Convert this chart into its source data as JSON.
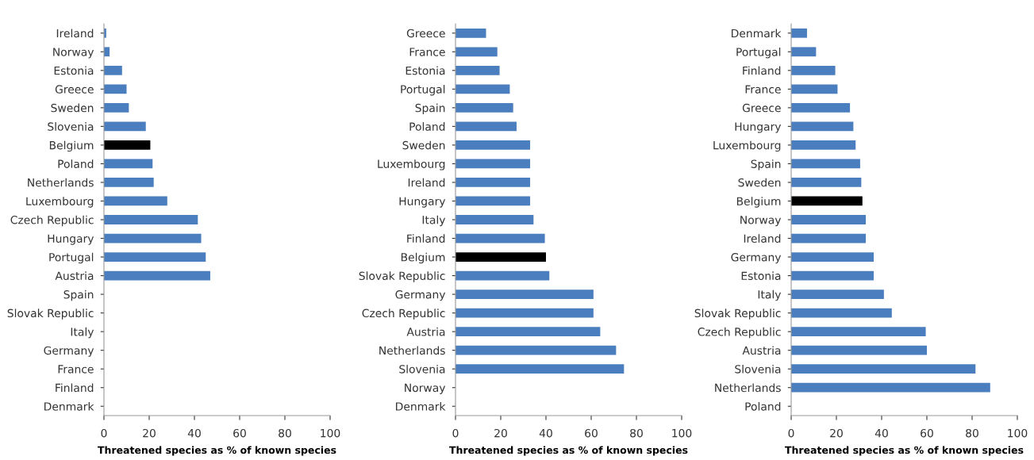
{
  "chart_data": [
    {
      "type": "bar",
      "orientation": "horizontal",
      "xlabel": "Threatened species as % of known species",
      "categories": [
        "Ireland",
        "Norway",
        "Estonia",
        "Greece",
        "Sweden",
        "Slovenia",
        "Belgium",
        "Poland",
        "Netherlands",
        "Luxembourg",
        "Czech Republic",
        "Hungary",
        "Portugal",
        "Austria",
        "Spain",
        "Slovak Republic",
        "Italy",
        "Germany",
        "France",
        "Finland",
        "Denmark"
      ],
      "values": [
        1,
        2.5,
        8,
        10,
        11,
        18.5,
        20.5,
        21.5,
        22,
        28,
        41.5,
        43,
        45,
        47,
        0,
        0,
        0,
        0,
        0,
        0,
        0
      ],
      "colors": [
        "#4a7ebf",
        "#4a7ebf",
        "#4a7ebf",
        "#4a7ebf",
        "#4a7ebf",
        "#4a7ebf",
        "#000000",
        "#4a7ebf",
        "#4a7ebf",
        "#4a7ebf",
        "#4a7ebf",
        "#4a7ebf",
        "#4a7ebf",
        "#4a7ebf",
        "#4a7ebf",
        "#4a7ebf",
        "#4a7ebf",
        "#4a7ebf",
        "#4a7ebf",
        "#4a7ebf",
        "#4a7ebf"
      ],
      "xlim": [
        0,
        100
      ],
      "xticks": [
        0,
        20,
        40,
        60,
        80,
        100
      ],
      "grid": false
    },
    {
      "type": "bar",
      "orientation": "horizontal",
      "xlabel": "Threatened species as % of known species",
      "categories": [
        "Greece",
        "France",
        "Estonia",
        "Portugal",
        "Spain",
        "Poland",
        "Sweden",
        "Luxembourg",
        "Ireland",
        "Hungary",
        "Italy",
        "Finland",
        "Belgium",
        "Slovak Republic",
        "Germany",
        "Czech Republic",
        "Austria",
        "Netherlands",
        "Slovenia",
        "Norway",
        "Denmark"
      ],
      "values": [
        13.5,
        18.5,
        19.5,
        24,
        25.5,
        27,
        33,
        33,
        33,
        33,
        34.5,
        39.5,
        40,
        41.5,
        61,
        61,
        64,
        71,
        74.5,
        0,
        0
      ],
      "colors": [
        "#4a7ebf",
        "#4a7ebf",
        "#4a7ebf",
        "#4a7ebf",
        "#4a7ebf",
        "#4a7ebf",
        "#4a7ebf",
        "#4a7ebf",
        "#4a7ebf",
        "#4a7ebf",
        "#4a7ebf",
        "#4a7ebf",
        "#000000",
        "#4a7ebf",
        "#4a7ebf",
        "#4a7ebf",
        "#4a7ebf",
        "#4a7ebf",
        "#4a7ebf",
        "#4a7ebf",
        "#4a7ebf"
      ],
      "xlim": [
        0,
        100
      ],
      "xticks": [
        0,
        20,
        40,
        60,
        80,
        100
      ],
      "grid": false
    },
    {
      "type": "bar",
      "orientation": "horizontal",
      "xlabel": "Threatened species as % of known species",
      "categories": [
        "Denmark",
        "Portugal",
        "Finland",
        "France",
        "Greece",
        "Hungary",
        "Luxembourg",
        "Spain",
        "Sweden",
        "Belgium",
        "Norway",
        "Ireland",
        "Germany",
        "Estonia",
        "Italy",
        "Slovak Republic",
        "Czech Republic",
        "Austria",
        "Slovenia",
        "Netherlands",
        "Poland"
      ],
      "values": [
        7,
        11,
        19.5,
        20.5,
        26,
        27.5,
        28.5,
        30.5,
        31,
        31.5,
        33,
        33,
        36.5,
        36.5,
        41,
        44.5,
        59.5,
        60,
        81.5,
        88,
        0
      ],
      "colors": [
        "#4a7ebf",
        "#4a7ebf",
        "#4a7ebf",
        "#4a7ebf",
        "#4a7ebf",
        "#4a7ebf",
        "#4a7ebf",
        "#4a7ebf",
        "#4a7ebf",
        "#000000",
        "#4a7ebf",
        "#4a7ebf",
        "#4a7ebf",
        "#4a7ebf",
        "#4a7ebf",
        "#4a7ebf",
        "#4a7ebf",
        "#4a7ebf",
        "#4a7ebf",
        "#4a7ebf",
        "#4a7ebf"
      ],
      "xlim": [
        0,
        100
      ],
      "xticks": [
        0,
        20,
        40,
        60,
        80,
        100
      ],
      "grid": false
    }
  ]
}
